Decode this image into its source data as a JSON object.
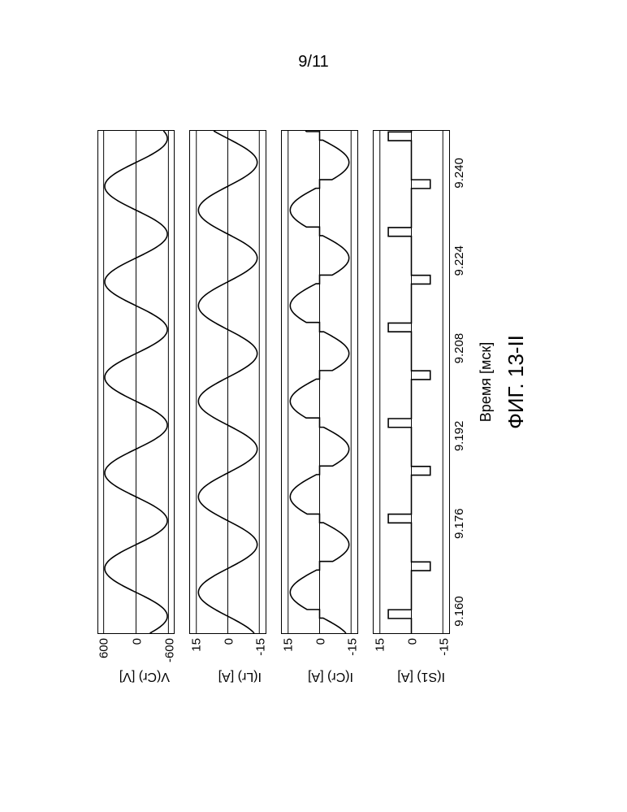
{
  "page_number": "9/11",
  "figure_caption": "ФИГ. 13-II",
  "x_axis": {
    "label": "Время [мск]",
    "min": 9.156,
    "max": 9.248,
    "ticks": [
      9.16,
      9.176,
      9.192,
      9.208,
      9.224,
      9.24
    ],
    "tick_labels": [
      "9.160",
      "9.176",
      "9.192",
      "9.208",
      "9.224",
      "9.240"
    ]
  },
  "layout": {
    "subplot_heights": [
      95,
      95,
      95,
      95
    ],
    "subplot_gap": 18,
    "line_width": 1.6,
    "line_color": "#000000",
    "grid_color": "#000000",
    "background": "#ffffff",
    "font_family": "Arial",
    "tick_fontsize": 15,
    "label_fontsize": 18,
    "caption_fontsize": 26
  },
  "subplots": [
    {
      "id": "vcr",
      "ylabel": "V(Cr)  [V]",
      "ymin": -700,
      "ymax": 700,
      "yticks": [
        -600,
        0,
        600
      ],
      "ytick_labels": [
        "-600",
        "0",
        "600"
      ],
      "gridlines": [
        -600,
        0,
        600
      ],
      "series": {
        "type": "sine",
        "amplitude": 580,
        "offset": 0,
        "period": 0.0175,
        "phase_at_xmin": 3.6
      }
    },
    {
      "id": "ilr",
      "ylabel": "I(Lr)  [A]",
      "ymin": -18,
      "ymax": 18,
      "yticks": [
        -15,
        0,
        15
      ],
      "ytick_labels": [
        "-15",
        "0",
        "15"
      ],
      "gridlines": [
        -15,
        0,
        15
      ],
      "series": {
        "type": "sine",
        "amplitude": 14,
        "offset": 0,
        "period": 0.0175,
        "phase_at_xmin": 5.17
      }
    },
    {
      "id": "icr",
      "ylabel": "I(Cr)  [A]",
      "ymin": -18,
      "ymax": 18,
      "yticks": [
        -15,
        0,
        15
      ],
      "ytick_labels": [
        "-15",
        "0",
        "15"
      ],
      "gridlines": [
        -15,
        0,
        15
      ],
      "series": {
        "type": "sine_with_notch",
        "amplitude": 14,
        "offset": 0,
        "period": 0.0175,
        "phase_at_xmin": 5.17,
        "notch_half_period": 0.00875,
        "notch_first_center": 9.1595,
        "notch_width": 0.0016,
        "notch_value": 0
      }
    },
    {
      "id": "is1",
      "ylabel": "I(S1)  [A]",
      "ymin": -18,
      "ymax": 18,
      "yticks": [
        -15,
        0,
        15
      ],
      "ytick_labels": [
        "-15",
        "0",
        "15"
      ],
      "gridlines": [
        -15,
        0,
        15
      ],
      "series": {
        "type": "pulses",
        "baseline": 0,
        "pulse_half_period": 0.00875,
        "pulse_first_center": 9.1595,
        "pulse_width": 0.0016,
        "amplitudes": [
          11,
          -9,
          11,
          -9,
          11,
          -9,
          11,
          -9,
          11,
          -9,
          11,
          -9
        ]
      }
    }
  ]
}
